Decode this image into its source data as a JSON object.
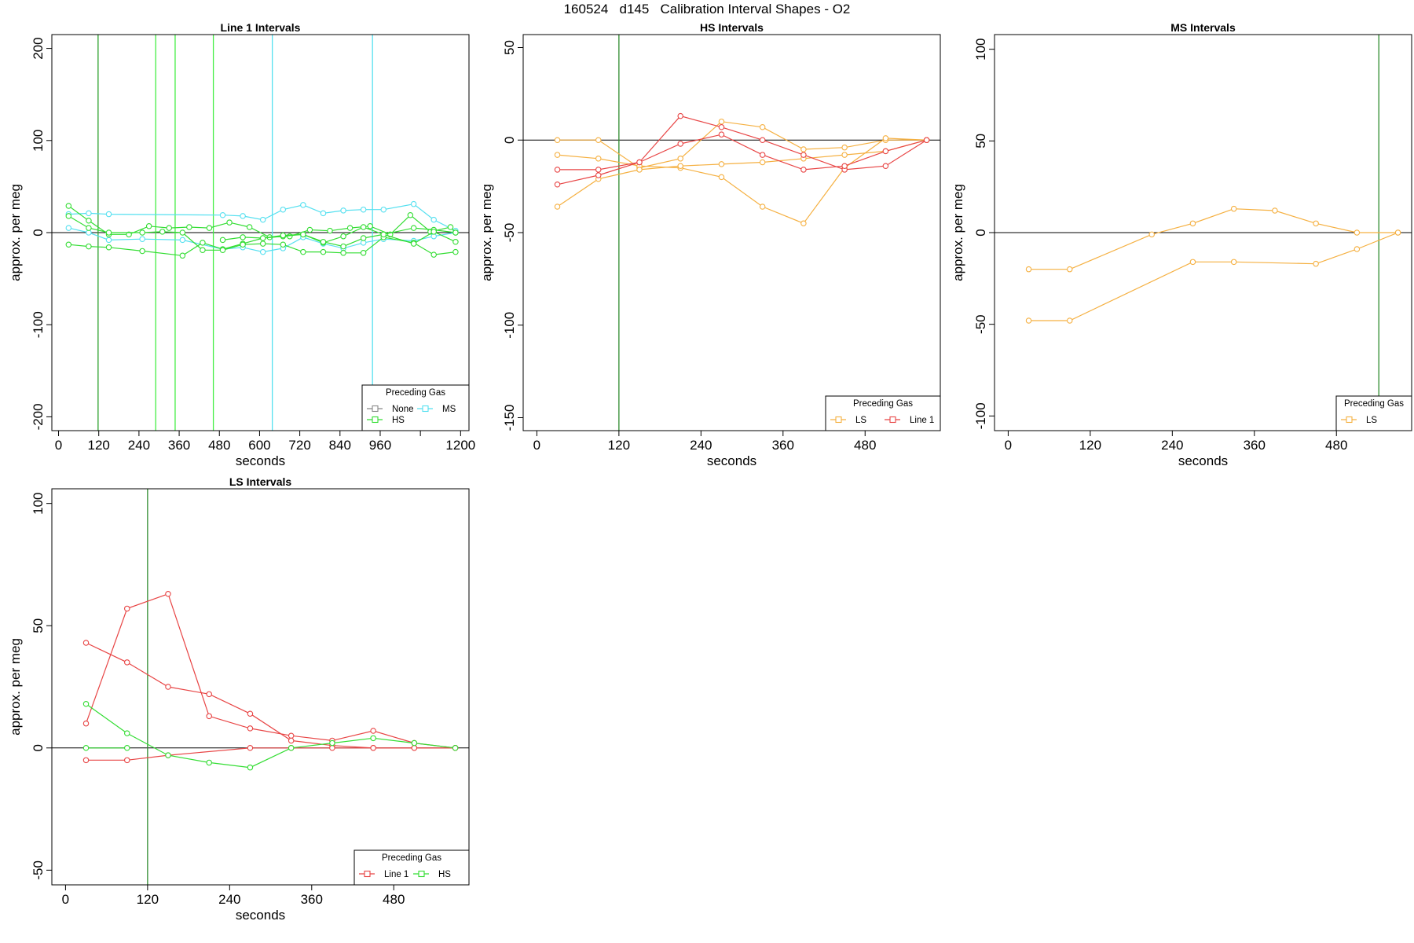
{
  "page_title": "160524   d145   Calibration Interval Shapes - O2",
  "chart_data": [
    {
      "type": "line",
      "title": "Line 1 Intervals",
      "xlabel": "seconds",
      "ylabel": "approx. per meg",
      "xlim": [
        -20,
        1225
      ],
      "ylim": [
        -215,
        215
      ],
      "xticks": [
        0,
        120,
        240,
        360,
        480,
        600,
        720,
        840,
        960,
        1080,
        1200
      ],
      "xtick_labels": [
        "0",
        "120",
        "240",
        "360",
        "480",
        "600",
        "720",
        "840",
        "960",
        "",
        "1200"
      ],
      "yticks": [
        -200,
        -100,
        0,
        100,
        200
      ],
      "ytick_labels": [
        "-200",
        "-100",
        "0",
        "100",
        "200"
      ],
      "hline": 0,
      "vlines": [
        {
          "x": 118,
          "color": "#2ca02c"
        },
        {
          "x": 290,
          "color": "#44ee44"
        },
        {
          "x": 348,
          "color": "#44ee44"
        },
        {
          "x": 462,
          "color": "#44ee44"
        },
        {
          "x": 638,
          "color": "#55e0f0"
        },
        {
          "x": 937,
          "color": "#55e0f0"
        }
      ],
      "legend": {
        "title": "Preceding Gas",
        "position": "bottom-right",
        "columns": 2,
        "entries": [
          {
            "label": "None",
            "color": "#888888"
          },
          {
            "label": "MS",
            "color": "#55e0f0"
          },
          {
            "label": "HS",
            "color": "#33dd33"
          }
        ]
      },
      "series": [
        {
          "color": "#55e0f0",
          "x": [
            30,
            90,
            150,
            490,
            550,
            610,
            670,
            730,
            790,
            850,
            910,
            970,
            1060,
            1120,
            1185
          ],
          "y": [
            20,
            21,
            20,
            19,
            18,
            14,
            25,
            30,
            21,
            24,
            25,
            25,
            31,
            14,
            2
          ]
        },
        {
          "color": "#55e0f0",
          "x": [
            30,
            90,
            150,
            250,
            370,
            490,
            550,
            610,
            670,
            730,
            790,
            850,
            910,
            970,
            1060,
            1120,
            1185
          ],
          "y": [
            5,
            0,
            -8,
            -7,
            -8,
            -18,
            -16,
            -21,
            -17,
            -5,
            -12,
            -17,
            -11,
            -7,
            -9,
            -4,
            0
          ]
        },
        {
          "color": "#33dd33",
          "x": [
            30,
            90,
            150,
            210,
            270,
            330,
            390,
            450,
            510,
            570,
            630,
            690,
            750,
            810,
            870,
            930,
            990,
            1050,
            1110,
            1170,
            1185
          ],
          "y": [
            29,
            13,
            -2,
            -2,
            7,
            5,
            6,
            5,
            11,
            6,
            -5,
            -4,
            3,
            2,
            5,
            7,
            -2,
            19,
            1,
            6,
            0
          ]
        },
        {
          "color": "#33dd33",
          "x": [
            30,
            90,
            150,
            250,
            370,
            430,
            490,
            550,
            610,
            670,
            730,
            790,
            850,
            910,
            970,
            1060,
            1120,
            1185
          ],
          "y": [
            -13,
            -15,
            -16,
            -20,
            -25,
            -11,
            -18,
            -12,
            -6,
            -4,
            -2,
            -11,
            -4,
            6,
            -2,
            5,
            3,
            0
          ]
        },
        {
          "color": "#33dd33",
          "x": [
            30,
            90,
            150,
            250,
            310,
            370,
            430,
            490,
            550,
            610,
            670,
            730,
            790,
            850,
            910,
            970,
            1060,
            1120,
            1185
          ],
          "y": [
            18,
            5,
            0,
            0,
            1,
            0,
            -19,
            -19,
            -13,
            -12,
            -13,
            -21,
            -21,
            -22,
            -22,
            -5,
            -11,
            -24,
            -21
          ]
        },
        {
          "color": "#33dd33",
          "x": [
            490,
            550,
            610,
            670,
            730,
            790,
            850,
            910,
            970,
            1060,
            1120,
            1185
          ],
          "y": [
            -8,
            -5,
            -6,
            -3,
            -2,
            -10,
            -15,
            -6,
            -2,
            -12,
            1,
            -10
          ]
        }
      ]
    },
    {
      "type": "line",
      "title": "HS Intervals",
      "xlabel": "seconds",
      "ylabel": "approx. per meg",
      "xlim": [
        -20,
        590
      ],
      "ylim": [
        -157,
        57
      ],
      "xticks": [
        0,
        120,
        240,
        360,
        480
      ],
      "xtick_labels": [
        "0",
        "120",
        "240",
        "360",
        "480"
      ],
      "yticks": [
        -150,
        -100,
        -50,
        0,
        50
      ],
      "ytick_labels": [
        "-150",
        "-100",
        "-50",
        "0",
        "50"
      ],
      "hline": 0,
      "vlines": [
        {
          "x": 120,
          "color": "#2e8b2e"
        }
      ],
      "legend": {
        "title": "Preceding Gas",
        "position": "bottom-right",
        "columns": 2,
        "entries": [
          {
            "label": "LS",
            "color": "#f5b041"
          },
          {
            "label": "Line 1",
            "color": "#e84545"
          }
        ]
      },
      "series": [
        {
          "color": "#f5b041",
          "x": [
            30,
            90,
            150,
            210,
            270,
            330,
            390,
            450,
            510,
            570
          ],
          "y": [
            0,
            0,
            -15,
            -10,
            10,
            7,
            -5,
            -4,
            0,
            0
          ]
        },
        {
          "color": "#f5b041",
          "x": [
            30,
            90,
            150,
            210,
            270,
            330,
            390,
            450,
            510,
            570
          ],
          "y": [
            -8,
            -10,
            -14,
            -15,
            -20,
            -36,
            -45,
            -15,
            1,
            0
          ]
        },
        {
          "color": "#f5b041",
          "x": [
            30,
            90,
            150,
            210,
            270,
            330,
            390,
            450,
            510,
            570
          ],
          "y": [
            -36,
            -21,
            -16,
            -14,
            -13,
            -12,
            -10,
            -8,
            -6,
            0
          ]
        },
        {
          "color": "#e84545",
          "x": [
            30,
            90,
            150,
            210,
            270,
            330,
            390,
            450,
            510,
            570
          ],
          "y": [
            -16,
            -16,
            -12,
            13,
            7,
            0,
            -8,
            -16,
            -14,
            0
          ]
        },
        {
          "color": "#e84545",
          "x": [
            30,
            90,
            150,
            210,
            270,
            330,
            390,
            450,
            510,
            570
          ],
          "y": [
            -24,
            -19,
            -12,
            -2,
            3,
            -8,
            -16,
            -14,
            -6,
            0
          ]
        }
      ]
    },
    {
      "type": "line",
      "title": "MS Intervals",
      "xlabel": "seconds",
      "ylabel": "approx. per meg",
      "xlim": [
        -20,
        590
      ],
      "ylim": [
        -108,
        108
      ],
      "xticks": [
        0,
        120,
        240,
        360,
        480
      ],
      "xtick_labels": [
        "0",
        "120",
        "240",
        "360",
        "480"
      ],
      "yticks": [
        -100,
        -50,
        0,
        50,
        100
      ],
      "ytick_labels": [
        "-100",
        "-50",
        "0",
        "50",
        "100"
      ],
      "hline": 0,
      "vlines": [
        {
          "x": 542,
          "color": "#2e8b2e"
        }
      ],
      "legend": {
        "title": "Preceding Gas",
        "position": "bottom-right",
        "columns": 1,
        "entries": [
          {
            "label": "LS",
            "color": "#f5b041"
          }
        ]
      },
      "series": [
        {
          "color": "#f5b041",
          "x": [
            30,
            90,
            210,
            270,
            330,
            390,
            450,
            510,
            570
          ],
          "y": [
            -20,
            -20,
            -1,
            5,
            13,
            12,
            5,
            0,
            0
          ]
        },
        {
          "color": "#f5b041",
          "x": [
            30,
            90,
            270,
            330,
            450,
            510,
            570
          ],
          "y": [
            -48,
            -48,
            -16,
            -16,
            -17,
            -9,
            0
          ]
        }
      ]
    },
    {
      "type": "line",
      "title": "LS Intervals",
      "xlabel": "seconds",
      "ylabel": "approx. per meg",
      "xlim": [
        -20,
        590
      ],
      "ylim": [
        -56,
        106
      ],
      "xticks": [
        0,
        120,
        240,
        360,
        480
      ],
      "xtick_labels": [
        "0",
        "120",
        "240",
        "360",
        "480"
      ],
      "yticks": [
        -50,
        0,
        50,
        100
      ],
      "ytick_labels": [
        "-50",
        "0",
        "50",
        "100"
      ],
      "hline": 0,
      "vlines": [
        {
          "x": 120,
          "color": "#2e8b2e"
        }
      ],
      "legend": {
        "title": "Preceding Gas",
        "position": "bottom-right",
        "columns": 2,
        "entries": [
          {
            "label": "Line 1",
            "color": "#e84545"
          },
          {
            "label": "HS",
            "color": "#33dd33"
          }
        ]
      },
      "series": [
        {
          "color": "#e84545",
          "x": [
            30,
            90,
            150,
            210,
            270,
            330,
            390,
            450,
            510,
            570
          ],
          "y": [
            10,
            57,
            63,
            13,
            8,
            5,
            3,
            7,
            2,
            0
          ]
        },
        {
          "color": "#e84545",
          "x": [
            30,
            90,
            150,
            210,
            270,
            330,
            390,
            450,
            510,
            570
          ],
          "y": [
            43,
            35,
            25,
            22,
            14,
            3,
            1,
            0,
            0,
            0
          ]
        },
        {
          "color": "#e84545",
          "x": [
            30,
            90,
            150,
            270,
            330,
            390,
            450,
            510,
            570
          ],
          "y": [
            -5,
            -5,
            -3,
            0,
            0,
            0,
            0,
            0,
            0
          ]
        },
        {
          "color": "#33dd33",
          "x": [
            30,
            90,
            150,
            210,
            270,
            330,
            390,
            450,
            510,
            570
          ],
          "y": [
            18,
            6,
            -3,
            -6,
            -8,
            0,
            2,
            4,
            2,
            0
          ]
        },
        {
          "color": "#33dd33",
          "x": [
            30,
            90
          ],
          "y": [
            0,
            0
          ]
        }
      ]
    }
  ]
}
